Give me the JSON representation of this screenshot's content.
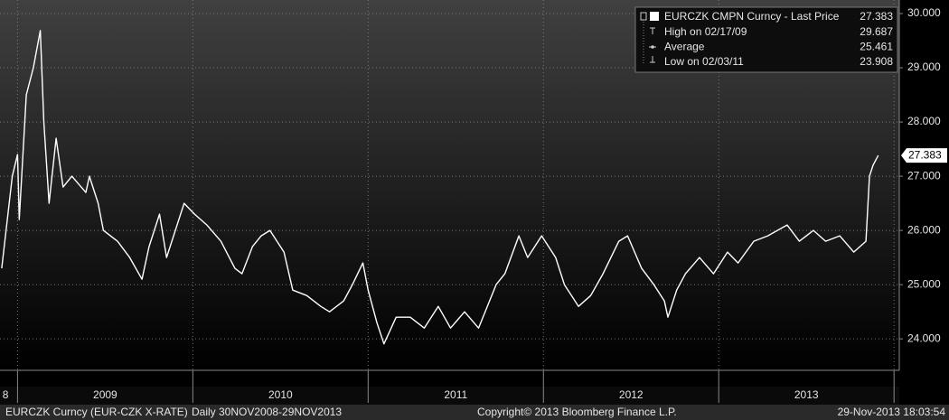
{
  "chart_data": {
    "type": "line",
    "x": [
      2008.91,
      2008.97,
      2009.0,
      2009.01,
      2009.05,
      2009.09,
      2009.13,
      2009.15,
      2009.18,
      2009.22,
      2009.26,
      2009.31,
      2009.39,
      2009.41,
      2009.46,
      2009.49,
      2009.57,
      2009.64,
      2009.71,
      2009.75,
      2009.81,
      2009.85,
      2009.9,
      2009.95,
      2010.01,
      2010.08,
      2010.16,
      2010.24,
      2010.28,
      2010.34,
      2010.39,
      2010.44,
      2010.52,
      2010.57,
      2010.65,
      2010.73,
      2010.78,
      2010.86,
      2010.91,
      2010.97,
      2011.0,
      2011.05,
      2011.09,
      2011.16,
      2011.24,
      2011.32,
      2011.4,
      2011.47,
      2011.55,
      2011.63,
      2011.68,
      2011.73,
      2011.78,
      2011.86,
      2011.91,
      2011.99,
      2012.07,
      2012.12,
      2012.2,
      2012.27,
      2012.34,
      2012.43,
      2012.48,
      2012.56,
      2012.63,
      2012.69,
      2012.71,
      2012.76,
      2012.81,
      2012.89,
      2012.97,
      2013.05,
      2013.11,
      2013.2,
      2013.28,
      2013.39,
      2013.46,
      2013.54,
      2013.61,
      2013.69,
      2013.77,
      2013.84,
      2013.86,
      2013.88,
      2013.91
    ],
    "series": [
      {
        "name": "EURCZK CMPN Curncy - Last Price",
        "color": "#ffffff",
        "values": [
          25.3,
          27.0,
          27.4,
          26.2,
          28.5,
          29.0,
          29.687,
          28.0,
          26.5,
          27.7,
          26.8,
          27.0,
          26.7,
          27.0,
          26.5,
          26.0,
          25.8,
          25.5,
          25.1,
          25.7,
          26.3,
          25.5,
          26.0,
          26.5,
          26.3,
          26.1,
          25.8,
          25.3,
          25.2,
          25.7,
          25.9,
          26.0,
          25.6,
          24.9,
          24.8,
          24.6,
          24.5,
          24.7,
          25.0,
          25.4,
          24.9,
          24.3,
          23.908,
          24.4,
          24.4,
          24.2,
          24.6,
          24.2,
          24.5,
          24.2,
          24.6,
          25.0,
          25.2,
          25.9,
          25.5,
          25.9,
          25.5,
          25.0,
          24.6,
          24.8,
          25.2,
          25.8,
          25.9,
          25.3,
          25.0,
          24.7,
          24.4,
          24.9,
          25.2,
          25.5,
          25.2,
          25.6,
          25.4,
          25.8,
          25.9,
          26.1,
          25.8,
          26.0,
          25.8,
          25.9,
          25.6,
          25.8,
          27.0,
          27.2,
          27.383
        ]
      }
    ],
    "xlim": [
      2008.9,
      2014.03
    ],
    "xticks": [
      2009,
      2010,
      2011,
      2012,
      2013,
      2014
    ],
    "periods": [
      "8",
      "2009",
      "2010",
      "2011",
      "2012",
      "2013"
    ],
    "ylim": [
      23.42,
      30.25
    ],
    "yticks": [
      {
        "value": 24,
        "label": "24.000"
      },
      {
        "value": 25,
        "label": "25.000"
      },
      {
        "value": 26,
        "label": "26.000"
      },
      {
        "value": 27,
        "label": "27.000"
      },
      {
        "value": 28,
        "label": "28.000"
      },
      {
        "value": 29,
        "label": "29.000"
      },
      {
        "value": 30,
        "label": "30.000"
      }
    ],
    "grid": true,
    "last_price": 27.383,
    "legend": {
      "rows": [
        {
          "label": "High on 02/17/09",
          "value": 29.687
        },
        {
          "label": "Average",
          "value": 25.461
        },
        {
          "label": "Low on 02/03/11",
          "value": 23.908
        }
      ]
    }
  },
  "footer": {
    "left": "EURCZK Curncy (EUR-CZK X-RATE)",
    "range": "Daily 30NOV2008-29NOV2013",
    "copyright": "Copyright© 2013 Bloomberg Finance L.P.",
    "timestamp": "29-Nov-2013 18:03:54"
  }
}
